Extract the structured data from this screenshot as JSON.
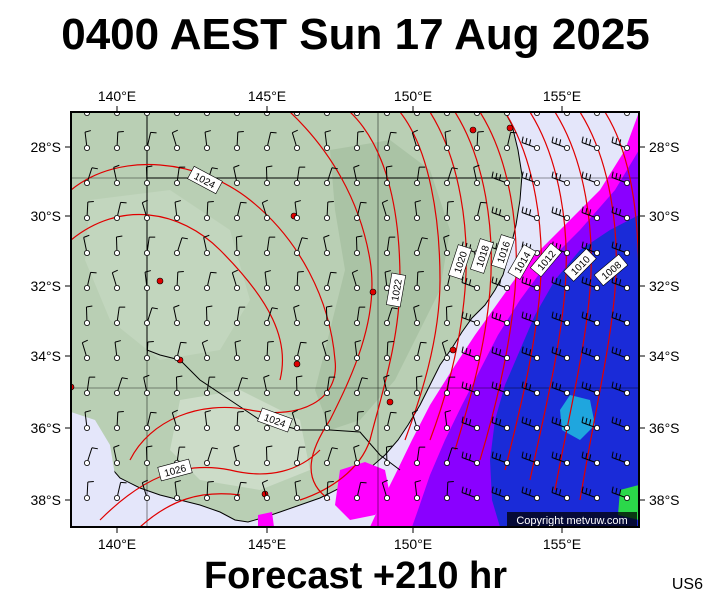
{
  "title": "0400 AEST Sun 17 Aug 2025",
  "footer": "Forecast +210 hr",
  "region_code": "US6",
  "copyright": "Copyright metvuw.com",
  "longitude_labels": [
    "140°E",
    "145°E",
    "150°E",
    "155°E"
  ],
  "latitude_labels": [
    "28°S",
    "30°S",
    "32°S",
    "34°S",
    "36°S",
    "38°S"
  ],
  "isobar_labels": [
    "1024",
    "1022",
    "1020",
    "1018",
    "1016",
    "1014",
    "1012",
    "1010",
    "1008",
    "1024",
    "1026"
  ],
  "colors": {
    "land": "#b9cfb4",
    "ocean": "#e4e6fa",
    "isobar": "#e00000",
    "rain_magenta": "#ff00ff",
    "rain_purple": "#8a00ff",
    "rain_blue": "#1a2bd8",
    "rain_cyan": "#21c6e0",
    "rain_green": "#2bd84a"
  }
}
